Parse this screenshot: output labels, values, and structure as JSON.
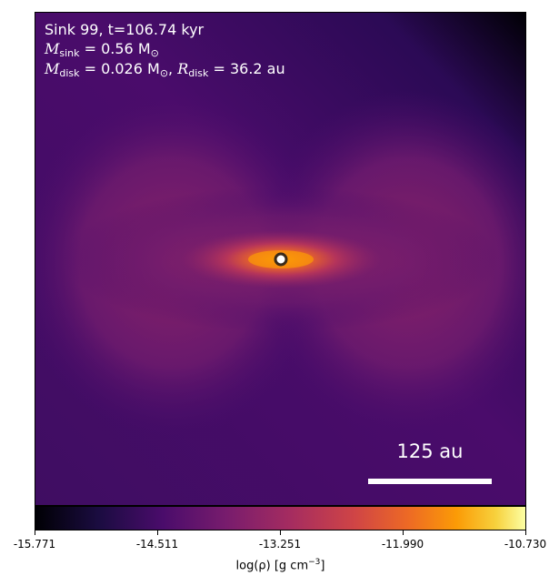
{
  "annotation": {
    "line1": "Sink 99, t=106.74 kyr",
    "msink_symbol": "M",
    "msink_sub": "sink",
    "msink_value": " = 0.56 M",
    "msink_unit_sub": "⊙",
    "mdisk_symbol": "M",
    "mdisk_sub": "disk",
    "mdisk_value": " = 0.026 M",
    "mdisk_unit_sub": "⊙",
    "rdisk_sep": ", ",
    "rdisk_symbol": "R",
    "rdisk_sub": "disk",
    "rdisk_value": " = 36.2 au"
  },
  "scalebar": {
    "label": "125 au"
  },
  "colorbar": {
    "colormap": "inferno",
    "ticks": [
      "-15.771",
      "-14.511",
      "-13.251",
      "-11.990",
      "-10.730"
    ],
    "label_main": "log(ρ) [g cm",
    "label_sup": "−3",
    "label_end": "]"
  },
  "colors": {
    "accent": "#ff8c1a",
    "sink_ring": "#3a2a1a"
  }
}
